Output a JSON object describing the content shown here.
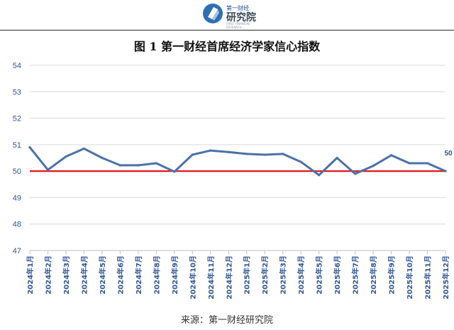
{
  "header": {
    "brand_small": "第一财经",
    "brand_name": "研究院",
    "brand_sub": "FIRST FINANCIAL RESEARCH"
  },
  "title": "图 1  第一财经首席经济学家信心指数",
  "source": "来源：第一财经研究院",
  "colors": {
    "series": "#4a72a8",
    "reference": "#e8141b",
    "grid": "#d9d9d9",
    "tick_text": "#2f5597"
  },
  "chart_data": {
    "type": "line",
    "title": "",
    "xlabel": "",
    "ylabel": "",
    "ylim": [
      47,
      54
    ],
    "yticks": [
      47,
      48,
      49,
      50,
      51,
      52,
      53,
      54
    ],
    "grid": "horizontal",
    "categories": [
      "2024年1月",
      "2024年2月",
      "2024年3月",
      "2024年4月",
      "2024年5月",
      "2024年6月",
      "2024年7月",
      "2024年8月",
      "2024年9月",
      "2024年10月",
      "2024年11月",
      "2024年12月",
      "2025年1月",
      "2025年2月",
      "2025年3月",
      "2025年4月",
      "2025年5月",
      "2025年6月",
      "2025年7月",
      "2025年8月",
      "2025年9月",
      "2025年10月",
      "2025年11月",
      "2025年12月"
    ],
    "series": [
      {
        "values": [
          50.9,
          50.05,
          50.55,
          50.85,
          50.5,
          50.22,
          50.22,
          50.3,
          49.98,
          50.62,
          50.78,
          50.72,
          50.65,
          50.62,
          50.65,
          50.35,
          49.85,
          50.5,
          49.9,
          50.2,
          50.6,
          50.3,
          50.3,
          50.0
        ]
      }
    ],
    "reference_line": 50,
    "annotations": [
      {
        "category": "2025年12月",
        "text": "50"
      }
    ]
  }
}
